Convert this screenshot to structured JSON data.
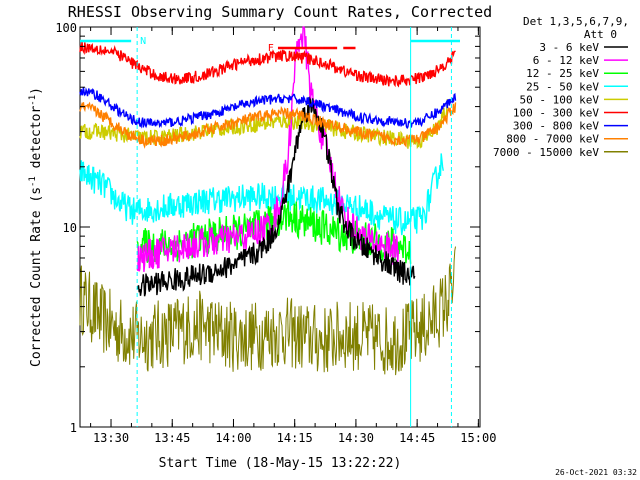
{
  "chart_data": {
    "type": "line",
    "title": "RHESSI Observing Summary Count Rates, Corrected",
    "xlabel": "Start Time (18-May-15 13:22:22)",
    "ylabel": "Corrected Count Rate (s⁻¹ detector⁻¹)",
    "ylabel_parts": {
      "pre": "Corrected Count Rate (s",
      "sup1": "-1",
      "mid": " detector",
      "sup2": "-1",
      "post": ")"
    },
    "x_unit": "minutes since 13:22:22",
    "xlim": [
      0,
      98
    ],
    "ylim": [
      1,
      100
    ],
    "yscale": "log",
    "x_ticks": [
      {
        "label": "13:30",
        "x": 7.6
      },
      {
        "label": "13:45",
        "x": 22.6
      },
      {
        "label": "14:00",
        "x": 37.6
      },
      {
        "label": "14:15",
        "x": 52.6
      },
      {
        "label": "14:30",
        "x": 67.6
      },
      {
        "label": "14:45",
        "x": 82.6
      },
      {
        "label": "15:00",
        "x": 97.6
      }
    ],
    "y_ticks": [
      {
        "label": "1",
        "y": 1
      },
      {
        "label": "10",
        "y": 10
      },
      {
        "label": "100",
        "y": 100
      }
    ],
    "legend_header": [
      "Det 1,3,5,6,7,9,",
      "Att 0"
    ],
    "legend_position": "right",
    "series": [
      {
        "name": "3 - 6 keV",
        "color": "#000000",
        "x": [
          14,
          20,
          25,
          30,
          35,
          40,
          44,
          47,
          49,
          51,
          52,
          53,
          55,
          57,
          59,
          61,
          63,
          65,
          68,
          70,
          72,
          75,
          78,
          80,
          82
        ],
        "y": [
          5.0,
          5.3,
          5.5,
          5.8,
          6.2,
          6.8,
          7.6,
          9.0,
          11,
          16,
          20,
          26,
          38,
          40,
          33,
          22,
          13,
          10,
          8.3,
          7.8,
          7.4,
          6.6,
          6.0,
          5.8,
          5.6
        ]
      },
      {
        "name": "6 - 12 keV",
        "color": "#ff00ff",
        "x": [
          14,
          20,
          25,
          30,
          35,
          40,
          44,
          47,
          49,
          51,
          52,
          53,
          54,
          55,
          56,
          57,
          58,
          59,
          61,
          63,
          65,
          68,
          70,
          72,
          75,
          78
        ],
        "y": [
          7.0,
          7.5,
          8.0,
          8.3,
          8.6,
          9.0,
          9.5,
          10.5,
          13,
          23,
          40,
          75,
          95,
          85,
          60,
          42,
          35,
          30,
          22,
          15,
          11,
          9.5,
          8.8,
          8.5,
          8.0,
          7.6
        ]
      },
      {
        "name": "12 - 25 keV",
        "color": "#00ff00",
        "x": [
          14,
          20,
          25,
          30,
          35,
          40,
          44,
          48,
          50,
          52,
          54,
          56,
          60,
          64,
          68,
          72,
          76,
          79,
          81
        ],
        "y": [
          8.0,
          8.1,
          8.3,
          8.8,
          9.3,
          9.5,
          10.0,
          10.8,
          11.5,
          11.2,
          10.8,
          10.5,
          9.8,
          9.2,
          8.8,
          8.5,
          8.2,
          8.0,
          7.6
        ]
      },
      {
        "name": "25 - 50 keV",
        "color": "#00ffff",
        "x": [
          0,
          6,
          10,
          13,
          16,
          20,
          25,
          30,
          35,
          40,
          45,
          50,
          55,
          60,
          65,
          70,
          75,
          80,
          84,
          87,
          89
        ],
        "y": [
          19,
          16,
          13,
          12,
          12.2,
          12.5,
          13,
          13.5,
          13.8,
          14,
          14.2,
          14.2,
          14,
          13.5,
          13,
          12.2,
          11,
          10.5,
          11,
          17,
          22
        ]
      },
      {
        "name": "50 - 100 keV",
        "color": "#cccc00",
        "x": [
          0,
          5,
          10,
          15,
          20,
          25,
          30,
          35,
          40,
          45,
          50,
          55,
          60,
          65,
          70,
          75,
          80,
          84,
          88,
          90
        ],
        "y": [
          30,
          30,
          29,
          28,
          28,
          29,
          30,
          31,
          32,
          33,
          34,
          33,
          32,
          30,
          29,
          28,
          27,
          27,
          32,
          40
        ]
      },
      {
        "name": "100 - 300 keV",
        "color": "#ff0000",
        "x": [
          0,
          5,
          10,
          15,
          20,
          25,
          30,
          35,
          40,
          45,
          50,
          55,
          60,
          65,
          70,
          75,
          80,
          84,
          88,
          92
        ],
        "y": [
          80,
          78,
          72,
          62,
          56,
          55,
          57,
          62,
          67,
          70,
          72,
          70,
          66,
          60,
          56,
          54,
          54,
          56,
          62,
          72
        ]
      },
      {
        "name": "300 - 800 keV",
        "color": "#0000ff",
        "x": [
          0,
          4,
          8,
          12,
          16,
          20,
          25,
          30,
          35,
          40,
          45,
          50,
          55,
          60,
          65,
          70,
          75,
          80,
          84,
          88,
          92
        ],
        "y": [
          48,
          46,
          40,
          35,
          33,
          33,
          34,
          36,
          38,
          41,
          43,
          44,
          43,
          40,
          37,
          35,
          34,
          33,
          34,
          38,
          45
        ]
      },
      {
        "name": "800 - 7000 keV",
        "color": "#ff8000",
        "x": [
          0,
          4,
          8,
          12,
          16,
          20,
          25,
          30,
          35,
          40,
          45,
          50,
          55,
          60,
          65,
          70,
          75,
          80,
          84,
          88,
          92
        ],
        "y": [
          40,
          38,
          33,
          29,
          27,
          27,
          28,
          30,
          32,
          34,
          36,
          37,
          36,
          33,
          31,
          29,
          28,
          27,
          28,
          32,
          40
        ]
      },
      {
        "name": "7000 - 15000 keV",
        "color": "#808000",
        "x": [
          0,
          5,
          10,
          15,
          20,
          25,
          30,
          35,
          40,
          45,
          50,
          55,
          60,
          65,
          70,
          75,
          80,
          85,
          90,
          92
        ],
        "y": [
          4.5,
          3.5,
          3.0,
          2.8,
          2.9,
          3.1,
          3.2,
          2.9,
          2.8,
          2.9,
          3.0,
          2.8,
          2.7,
          2.9,
          2.8,
          2.7,
          2.8,
          3.2,
          4.2,
          5.5
        ]
      }
    ],
    "annotations": [
      {
        "text": "N",
        "color": "#00ffff"
      },
      {
        "text": "F",
        "color": "#ff0000"
      }
    ],
    "timestamp": "26-Oct-2021 03:32"
  }
}
